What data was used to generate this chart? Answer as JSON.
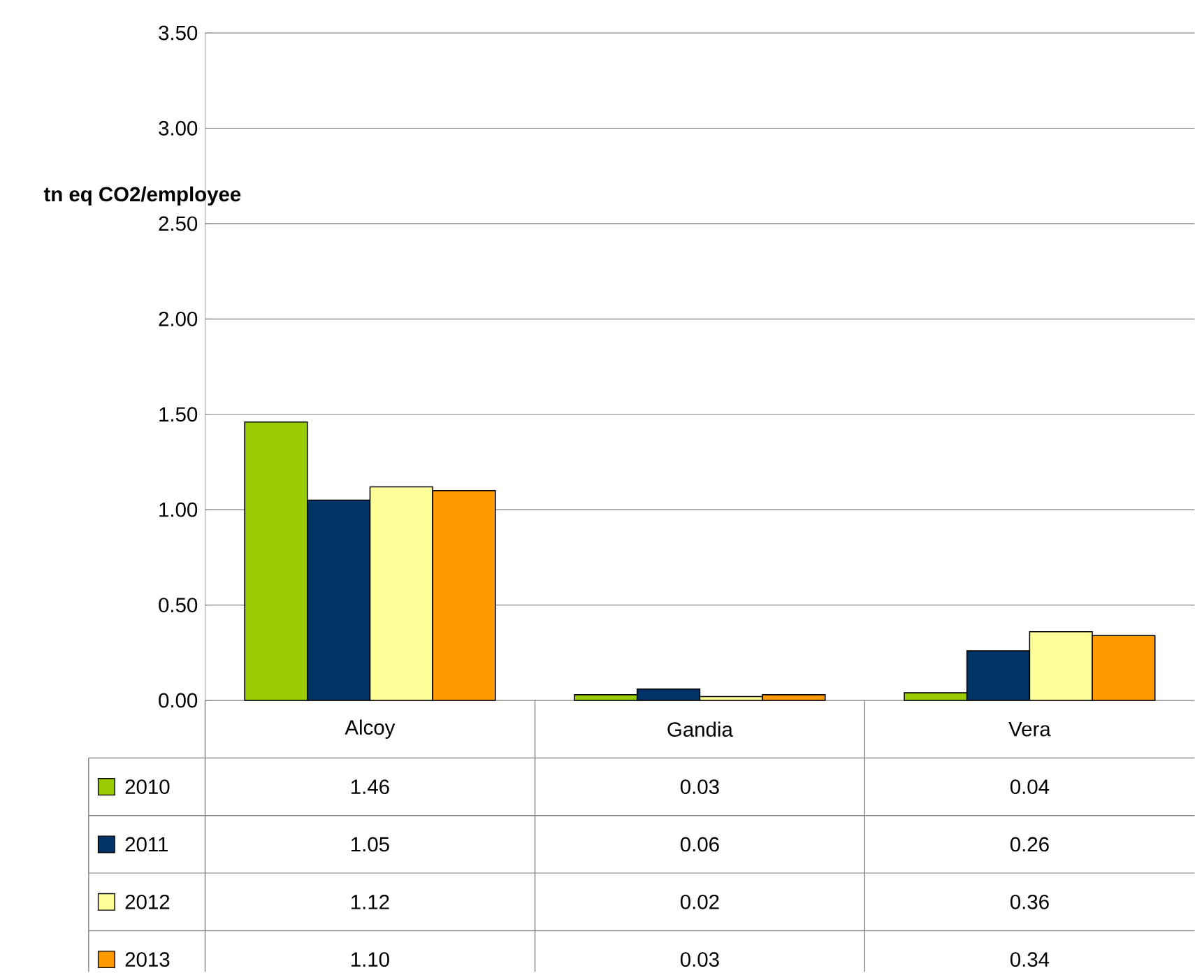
{
  "chart_data": {
    "type": "bar",
    "ylabel": "tn eq CO2/employee",
    "categories": [
      "Alcoy",
      "Gandia",
      "Vera"
    ],
    "series": [
      {
        "name": "2010",
        "color": "#99cc00",
        "values": [
          1.46,
          0.03,
          0.04
        ],
        "value_labels": [
          "1.46",
          "0.03",
          "0.04"
        ]
      },
      {
        "name": "2011",
        "color": "#003366",
        "values": [
          1.05,
          0.06,
          0.26
        ],
        "value_labels": [
          "1.05",
          "0.06",
          "0.26"
        ]
      },
      {
        "name": "2012",
        "color": "#ffff99",
        "values": [
          1.12,
          0.02,
          0.36
        ],
        "value_labels": [
          "1.12",
          "0.02",
          "0.36"
        ]
      },
      {
        "name": "2013",
        "color": "#ff9900",
        "values": [
          1.1,
          0.03,
          0.34
        ],
        "value_labels": [
          "1.10",
          "0.03",
          "0.34"
        ]
      }
    ],
    "ylim": [
      0,
      3.5
    ],
    "yticks": [
      {
        "value": 0,
        "label": "0.00"
      },
      {
        "value": 0.5,
        "label": "0.50"
      },
      {
        "value": 1,
        "label": "1.00"
      },
      {
        "value": 1.5,
        "label": "1.50"
      },
      {
        "value": 2,
        "label": "2.00"
      },
      {
        "value": 2.5,
        "label": "2.50"
      },
      {
        "value": 3,
        "label": "3.00"
      },
      {
        "value": 3.5,
        "label": "3.50"
      }
    ],
    "grid": "y",
    "legend": "bottom left"
  }
}
